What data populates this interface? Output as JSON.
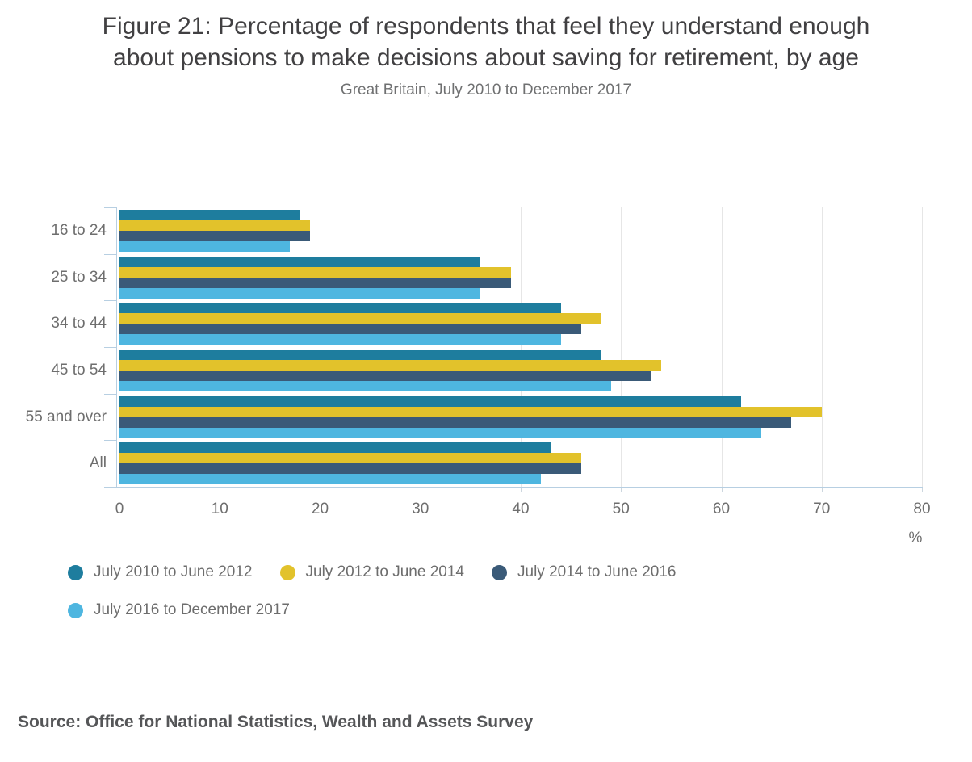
{
  "header": {
    "title": "Figure 21: Percentage of respondents that feel they understand enough\nabout pensions to make decisions about saving for retirement, by age",
    "subtitle": "Great Britain, July 2010 to December 2017"
  },
  "chart_data": {
    "type": "bar",
    "orientation": "horizontal",
    "title": "Figure 21: Percentage of respondents that feel they understand enough about pensions to make decisions about saving for retirement, by age",
    "subtitle": "Great Britain, July 2010 to December 2017",
    "categories": [
      "16 to 24",
      "25 to 34",
      "34 to 44",
      "45 to 54",
      "55 and over",
      "All"
    ],
    "series": [
      {
        "name": "July 2010 to June 2012",
        "color": "#1e7d9e",
        "values": [
          18,
          36,
          44,
          48,
          62,
          43
        ]
      },
      {
        "name": "July 2012 to June 2014",
        "color": "#e2c22b",
        "values": [
          19,
          39,
          48,
          54,
          70,
          46
        ]
      },
      {
        "name": "July 2014 to June 2016",
        "color": "#3a5a78",
        "values": [
          19,
          39,
          46,
          53,
          67,
          46
        ]
      },
      {
        "name": "July 2016 to December 2017",
        "color": "#4eb6e0",
        "values": [
          17,
          36,
          44,
          49,
          64,
          42
        ]
      }
    ],
    "x_axis": {
      "min": 0,
      "max": 80,
      "tick_interval": 10,
      "ticks": [
        0,
        10,
        20,
        30,
        40,
        50,
        60,
        70,
        80
      ],
      "unit_label": "%"
    },
    "grid": "vertical-on",
    "legend_position": "bottom-left",
    "legend_rows": [
      [
        0,
        1,
        2
      ],
      [
        3
      ]
    ]
  },
  "source": {
    "text": "Source: Office for National Statistics, Wealth and Assets Survey"
  }
}
